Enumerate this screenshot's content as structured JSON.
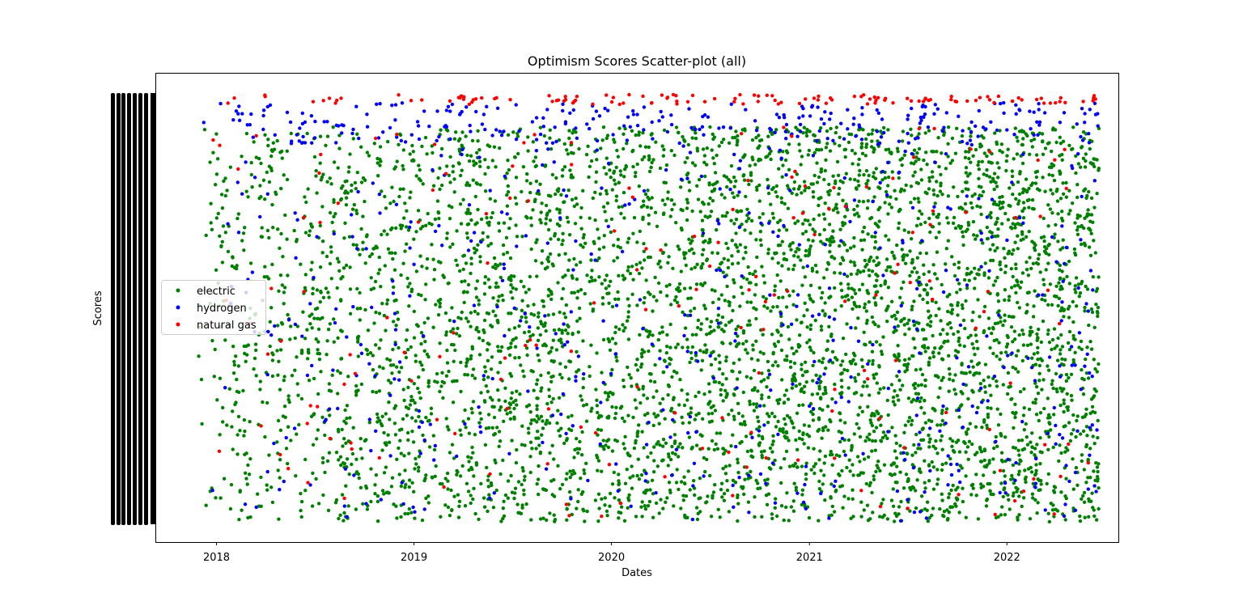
{
  "chart_data": {
    "type": "scatter",
    "title": "Optimism Scores Scatter-plot (all)",
    "xlabel": "Dates",
    "ylabel": "Scores",
    "x_axis_type": "date",
    "xlim": [
      "2017-09-10",
      "2022-07-26"
    ],
    "x_tick_labels": [
      "2018",
      "2019",
      "2020",
      "2021",
      "2022"
    ],
    "x_ticks": [
      "2018-01-01",
      "2019-01-01",
      "2020-01-01",
      "2021-01-01",
      "2022-01-01"
    ],
    "y_tick_labels_note": "y tick labels are dense and illegible (rendered as overlapping black marks)",
    "legend_position": "center-left",
    "grid": false,
    "colors": {
      "electric": "#008000",
      "hydrogen": "#0000ff",
      "natural gas": "#ff0000"
    },
    "series": [
      {
        "name": "electric",
        "color": "#008000",
        "date_range": [
          "2017-11-28",
          "2022-06-20"
        ],
        "approx_count": 5200
      },
      {
        "name": "hydrogen",
        "color": "#0000ff",
        "date_range": [
          "2017-11-28",
          "2022-06-20"
        ],
        "approx_count": 780
      },
      {
        "name": "natural gas",
        "color": "#ff0000",
        "date_range": [
          "2017-11-28",
          "2022-06-20"
        ],
        "approx_count": 300
      }
    ]
  }
}
